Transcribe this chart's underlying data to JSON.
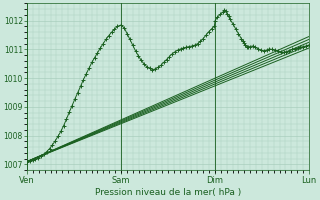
{
  "title": "Pression niveau de la mer( hPa )",
  "bg_color": "#cce8dc",
  "grid_color": "#aacfbe",
  "line_color": "#1a6020",
  "ylim": [
    1006.8,
    1012.6
  ],
  "yticks": [
    1007,
    1008,
    1009,
    1010,
    1011,
    1012
  ],
  "xtick_labels": [
    "Ven",
    "Sam",
    "Dim",
    "Lun"
  ],
  "xtick_positions": [
    0,
    0.333,
    0.667,
    1.0
  ],
  "smooth_lines": [
    [
      [
        0,
        1007.1
      ],
      [
        1.0,
        1011.05
      ]
    ],
    [
      [
        0,
        1007.1
      ],
      [
        1.0,
        1011.15
      ]
    ],
    [
      [
        0,
        1007.1
      ],
      [
        1.0,
        1011.25
      ]
    ],
    [
      [
        0,
        1007.1
      ],
      [
        1.0,
        1011.35
      ]
    ],
    [
      [
        0,
        1007.1
      ],
      [
        1.0,
        1011.45
      ]
    ]
  ],
  "noisy_points": [
    [
      0.0,
      1007.1
    ],
    [
      0.01,
      1007.12
    ],
    [
      0.02,
      1007.15
    ],
    [
      0.03,
      1007.18
    ],
    [
      0.04,
      1007.22
    ],
    [
      0.05,
      1007.28
    ],
    [
      0.06,
      1007.35
    ],
    [
      0.07,
      1007.45
    ],
    [
      0.08,
      1007.55
    ],
    [
      0.09,
      1007.68
    ],
    [
      0.1,
      1007.82
    ],
    [
      0.11,
      1007.98
    ],
    [
      0.12,
      1008.15
    ],
    [
      0.13,
      1008.35
    ],
    [
      0.14,
      1008.58
    ],
    [
      0.15,
      1008.82
    ],
    [
      0.16,
      1009.05
    ],
    [
      0.17,
      1009.28
    ],
    [
      0.18,
      1009.5
    ],
    [
      0.19,
      1009.72
    ],
    [
      0.2,
      1009.95
    ],
    [
      0.21,
      1010.15
    ],
    [
      0.22,
      1010.35
    ],
    [
      0.23,
      1010.55
    ],
    [
      0.24,
      1010.72
    ],
    [
      0.25,
      1010.88
    ],
    [
      0.26,
      1011.05
    ],
    [
      0.27,
      1011.2
    ],
    [
      0.28,
      1011.35
    ],
    [
      0.29,
      1011.48
    ],
    [
      0.3,
      1011.6
    ],
    [
      0.31,
      1011.7
    ],
    [
      0.32,
      1011.8
    ],
    [
      0.333,
      1011.85
    ],
    [
      0.345,
      1011.75
    ],
    [
      0.355,
      1011.55
    ],
    [
      0.365,
      1011.35
    ],
    [
      0.375,
      1011.15
    ],
    [
      0.385,
      1010.95
    ],
    [
      0.395,
      1010.78
    ],
    [
      0.405,
      1010.62
    ],
    [
      0.415,
      1010.5
    ],
    [
      0.425,
      1010.4
    ],
    [
      0.435,
      1010.35
    ],
    [
      0.445,
      1010.3
    ],
    [
      0.455,
      1010.32
    ],
    [
      0.465,
      1010.38
    ],
    [
      0.475,
      1010.45
    ],
    [
      0.485,
      1010.55
    ],
    [
      0.495,
      1010.65
    ],
    [
      0.505,
      1010.75
    ],
    [
      0.515,
      1010.85
    ],
    [
      0.525,
      1010.92
    ],
    [
      0.535,
      1010.98
    ],
    [
      0.545,
      1011.02
    ],
    [
      0.555,
      1011.05
    ],
    [
      0.565,
      1011.08
    ],
    [
      0.575,
      1011.1
    ],
    [
      0.585,
      1011.12
    ],
    [
      0.595,
      1011.15
    ],
    [
      0.605,
      1011.2
    ],
    [
      0.615,
      1011.28
    ],
    [
      0.625,
      1011.38
    ],
    [
      0.635,
      1011.5
    ],
    [
      0.645,
      1011.62
    ],
    [
      0.655,
      1011.72
    ],
    [
      0.665,
      1011.82
    ],
    [
      0.667,
      1012.0
    ],
    [
      0.675,
      1012.12
    ],
    [
      0.685,
      1012.22
    ],
    [
      0.695,
      1012.3
    ],
    [
      0.7,
      1012.38
    ],
    [
      0.705,
      1012.35
    ],
    [
      0.71,
      1012.25
    ],
    [
      0.715,
      1012.15
    ],
    [
      0.72,
      1012.05
    ],
    [
      0.73,
      1011.9
    ],
    [
      0.74,
      1011.72
    ],
    [
      0.75,
      1011.55
    ],
    [
      0.76,
      1011.38
    ],
    [
      0.765,
      1011.28
    ],
    [
      0.77,
      1011.22
    ],
    [
      0.775,
      1011.15
    ],
    [
      0.78,
      1011.1
    ],
    [
      0.785,
      1011.08
    ],
    [
      0.79,
      1011.1
    ],
    [
      0.8,
      1011.12
    ],
    [
      0.81,
      1011.08
    ],
    [
      0.82,
      1011.02
    ],
    [
      0.83,
      1010.98
    ],
    [
      0.84,
      1010.95
    ],
    [
      0.85,
      1010.98
    ],
    [
      0.86,
      1011.02
    ],
    [
      0.87,
      1011.0
    ],
    [
      0.88,
      1010.98
    ],
    [
      0.89,
      1010.95
    ],
    [
      0.9,
      1010.92
    ],
    [
      0.91,
      1010.9
    ],
    [
      0.92,
      1010.92
    ],
    [
      0.93,
      1010.95
    ],
    [
      0.94,
      1011.0
    ],
    [
      0.95,
      1011.02
    ],
    [
      0.96,
      1011.05
    ],
    [
      0.97,
      1011.08
    ],
    [
      0.98,
      1011.1
    ],
    [
      0.99,
      1011.12
    ],
    [
      1.0,
      1011.15
    ]
  ]
}
